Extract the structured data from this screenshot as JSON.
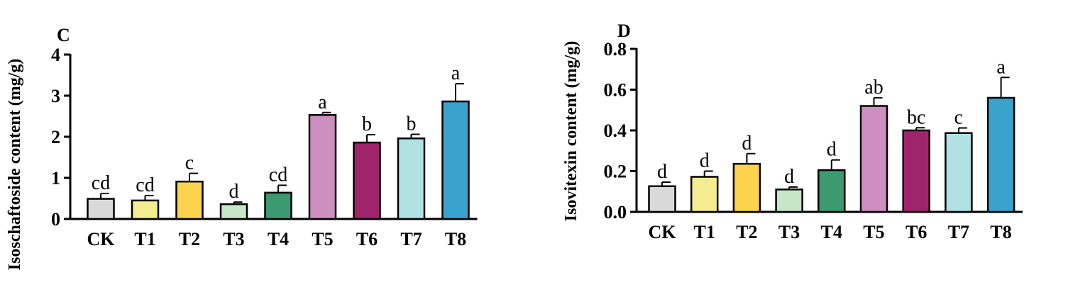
{
  "chart_data": [
    {
      "type": "bar",
      "panel_label": "C",
      "title": "",
      "xlabel": "",
      "ylabel": "Isoschaftoside content (mg/g)",
      "ylim": [
        0,
        4
      ],
      "yticks": [
        0,
        1,
        2,
        3,
        4
      ],
      "ytick_labels": [
        "0",
        "1",
        "2",
        "3",
        "4"
      ],
      "categories": [
        "CK",
        "T1",
        "T2",
        "T3",
        "T4",
        "T5",
        "T6",
        "T7",
        "T8"
      ],
      "values": [
        0.49,
        0.45,
        0.91,
        0.36,
        0.64,
        2.53,
        1.86,
        1.96,
        2.86
      ],
      "errors": [
        0.13,
        0.12,
        0.2,
        0.05,
        0.18,
        0.06,
        0.19,
        0.1,
        0.43
      ],
      "labels": [
        "cd",
        "cd",
        "c",
        "d",
        "cd",
        "a",
        "b",
        "b",
        "a"
      ],
      "colors": [
        "#d9d9d9",
        "#f3ec91",
        "#fdd24e",
        "#c7e6c7",
        "#3c9a72",
        "#cd8fbf",
        "#a0246c",
        "#b0e2e4",
        "#3aa3cd"
      ]
    },
    {
      "type": "bar",
      "panel_label": "D",
      "title": "",
      "xlabel": "",
      "ylabel": "Isovitexin content (mg/g)",
      "ylim": [
        0,
        0.8
      ],
      "yticks": [
        0,
        0.2,
        0.4,
        0.6,
        0.8
      ],
      "ytick_labels": [
        "0.0",
        "0.2",
        "0.4",
        "0.6",
        "0.8"
      ],
      "categories": [
        "CK",
        "T1",
        "T2",
        "T3",
        "T4",
        "T5",
        "T6",
        "T7",
        "T8"
      ],
      "values": [
        0.126,
        0.172,
        0.236,
        0.11,
        0.205,
        0.52,
        0.4,
        0.387,
        0.56
      ],
      "errors": [
        0.02,
        0.028,
        0.05,
        0.012,
        0.05,
        0.04,
        0.013,
        0.025,
        0.1
      ],
      "labels": [
        "d",
        "d",
        "d",
        "d",
        "d",
        "ab",
        "bc",
        "c",
        "a"
      ],
      "colors": [
        "#d9d9d9",
        "#f3ec91",
        "#fdd24e",
        "#c7e6c7",
        "#3c9a72",
        "#cd8fbf",
        "#a0246c",
        "#b0e2e4",
        "#3aa3cd"
      ]
    }
  ]
}
